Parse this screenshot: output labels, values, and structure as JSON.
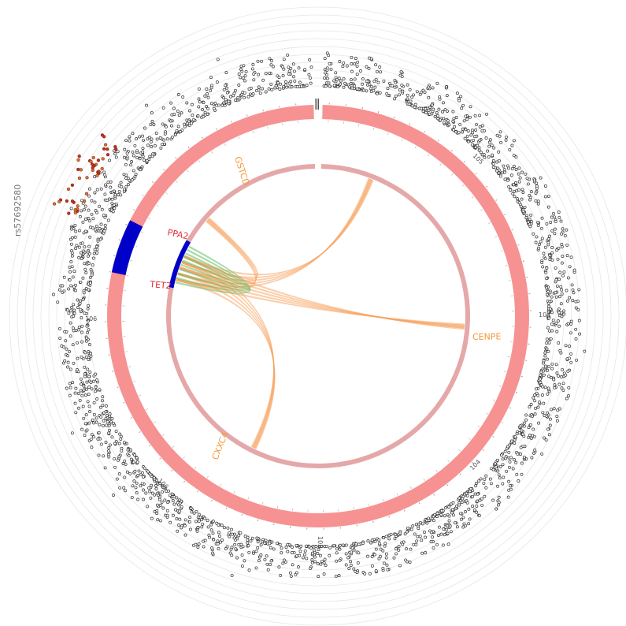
{
  "figure": {
    "snp_label": "rs57692580",
    "outer_ring_ticks": [
      "104",
      "104",
      "105",
      "105",
      "106",
      "106"
    ],
    "colors": {
      "outer_ring": "#f79292",
      "inner_ring": "#e5a8a8",
      "highlight_region": "#0000c8",
      "orange_link": "#f7a05a",
      "green_link": "#6cbf6c",
      "gene_label_red": "#e0313a",
      "gene_label_orange": "#f5993c",
      "dots_default": "#333333",
      "dots_highlight": "#c0321f"
    },
    "genes": [
      {
        "name": "GSTCD",
        "color": "orange"
      },
      {
        "name": "PPA2",
        "color": "red"
      },
      {
        "name": "TET2",
        "color": "red"
      },
      {
        "name": "CENPE",
        "color": "orange"
      },
      {
        "name": "CXXC4",
        "color": "orange"
      }
    ]
  }
}
